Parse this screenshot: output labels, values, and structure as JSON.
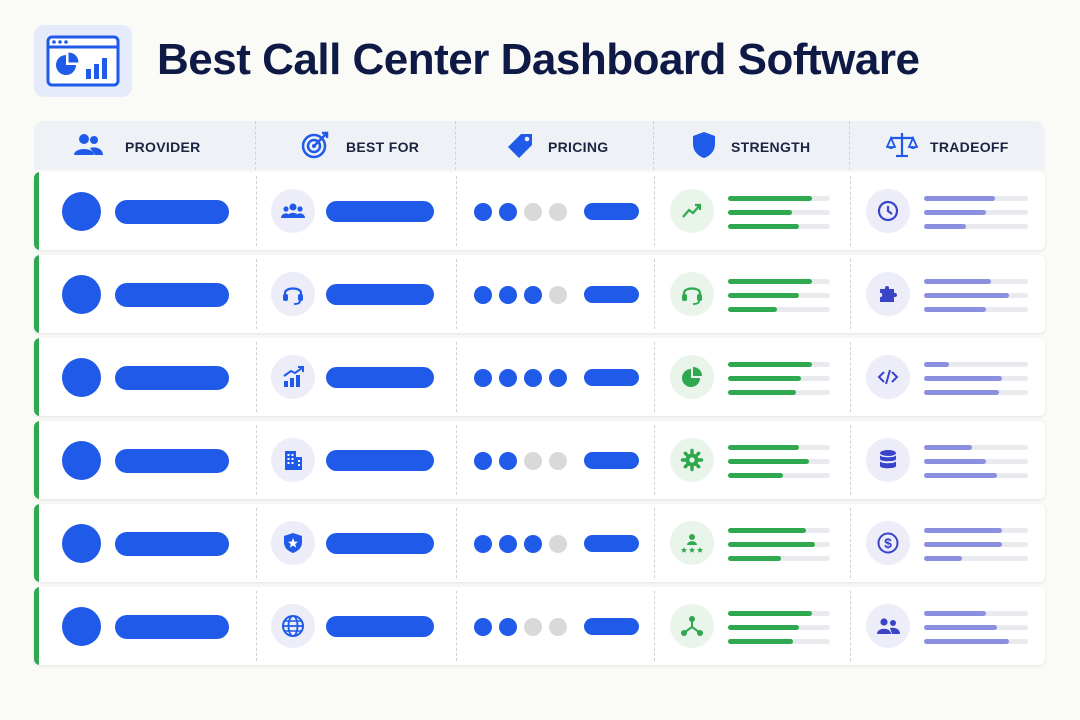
{
  "page": {
    "title": "Best Call Center Dashboard Software",
    "logo_icon": "dashboard-chart-icon"
  },
  "colors": {
    "navy": "#0e1a45",
    "blue": "#1f5ae8",
    "green": "#2fa84f",
    "lavender": "#8a8fe0",
    "gray_dot": "#d9d9d9"
  },
  "columns": [
    {
      "key": "provider",
      "label": "PROVIDER",
      "icon": "users-icon"
    },
    {
      "key": "best_for",
      "label": "BEST FOR",
      "icon": "target-icon"
    },
    {
      "key": "pricing",
      "label": "PRICING",
      "icon": "price-tag-icon"
    },
    {
      "key": "strength",
      "label": "STRENGTH",
      "icon": "shield-icon"
    },
    {
      "key": "tradeoff",
      "label": "TRADEOFF",
      "icon": "scales-icon"
    }
  ],
  "rows": [
    {
      "best_for_icon": "team-icon",
      "pricing_level": 2,
      "strength_icon": "trend-up-icon",
      "strength_levels": [
        0.82,
        0.63,
        0.7
      ],
      "tradeoff_icon": "clock-icon",
      "tradeoff_levels": [
        0.68,
        0.6,
        0.4
      ]
    },
    {
      "best_for_icon": "headset-icon",
      "pricing_level": 3,
      "strength_icon": "headset-icon",
      "strength_levels": [
        0.82,
        0.7,
        0.48
      ],
      "tradeoff_icon": "puzzle-icon",
      "tradeoff_levels": [
        0.64,
        0.82,
        0.6
      ]
    },
    {
      "best_for_icon": "growth-chart-icon",
      "pricing_level": 4,
      "strength_icon": "pie-chart-icon",
      "strength_levels": [
        0.82,
        0.72,
        0.67
      ],
      "tradeoff_icon": "code-icon",
      "tradeoff_levels": [
        0.24,
        0.75,
        0.72
      ]
    },
    {
      "best_for_icon": "building-icon",
      "pricing_level": 2,
      "strength_icon": "gear-icon",
      "strength_levels": [
        0.7,
        0.79,
        0.54
      ],
      "tradeoff_icon": "database-icon",
      "tradeoff_levels": [
        0.46,
        0.6,
        0.7
      ]
    },
    {
      "best_for_icon": "shield-star-icon",
      "pricing_level": 3,
      "strength_icon": "rating-stars-icon",
      "strength_levels": [
        0.76,
        0.85,
        0.52
      ],
      "tradeoff_icon": "dollar-icon",
      "tradeoff_levels": [
        0.75,
        0.75,
        0.37
      ]
    },
    {
      "best_for_icon": "globe-icon",
      "pricing_level": 2,
      "strength_icon": "network-icon",
      "strength_levels": [
        0.82,
        0.7,
        0.64
      ],
      "tradeoff_icon": "users-icon",
      "tradeoff_levels": [
        0.6,
        0.7,
        0.82
      ]
    }
  ]
}
